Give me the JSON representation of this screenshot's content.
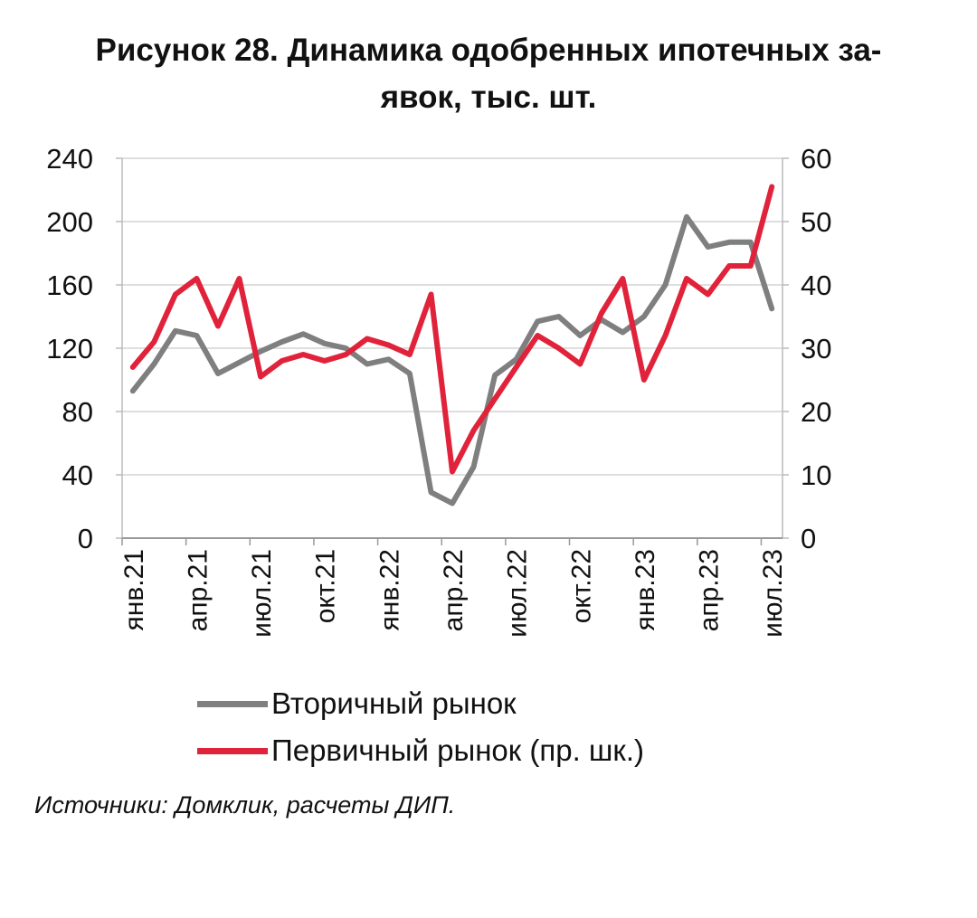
{
  "chart_data": {
    "type": "line",
    "title": "Рисунок 28. Динамика одобренных ипотечных за-вявок, тыс. шт.",
    "title_lines": [
      "Рисунок 28. Динамика одобренных ипотечных за-",
      "явок, тыс. шт."
    ],
    "categories": [
      "янв.21",
      "фев.21",
      "мар.21",
      "апр.21",
      "май.21",
      "июн.21",
      "июл.21",
      "авг.21",
      "сен.21",
      "окт.21",
      "ноя.21",
      "дек.21",
      "янв.22",
      "фев.22",
      "мар.22",
      "апр.22",
      "май.22",
      "июн.22",
      "июл.22",
      "авг.22",
      "сен.22",
      "окт.22",
      "ноя.22",
      "дек.22",
      "янв.23",
      "фев.23",
      "мар.23",
      "апр.23",
      "май.23",
      "июн.23",
      "июл.23"
    ],
    "tick_labels": [
      "янв.21",
      "апр.21",
      "июл.21",
      "окт.21",
      "янв.22",
      "апр.22",
      "июл.22",
      "окт.22",
      "янв.23",
      "апр.23",
      "июл.23"
    ],
    "y_left": {
      "ticks": [
        "0",
        "40",
        "80",
        "120",
        "160",
        "200",
        "240"
      ],
      "ylim": [
        0,
        240
      ]
    },
    "y_right": {
      "ticks": [
        "0",
        "10",
        "20",
        "30",
        "40",
        "50",
        "60"
      ],
      "ylim": [
        0,
        60
      ]
    },
    "grid": true,
    "legend_position": "bottom-left",
    "series": [
      {
        "name": "Вторичный рынок",
        "axis": "left",
        "color": "#7f7f7f",
        "values": [
          93,
          110,
          131,
          128,
          104,
          111,
          118,
          124,
          129,
          123,
          120,
          110,
          113,
          104,
          29,
          22,
          45,
          103,
          113,
          137,
          140,
          128,
          138,
          130,
          140,
          160,
          203,
          184,
          187,
          187,
          145
        ]
      },
      {
        "name": "Первичный рынок (пр. шк.)",
        "axis": "right",
        "color": "#e0233a",
        "values": [
          27,
          31,
          38.5,
          41,
          33.5,
          41,
          25.5,
          28,
          29,
          28,
          29,
          31.5,
          30.5,
          29,
          38.5,
          10.5,
          17,
          22,
          27,
          32,
          30,
          27.5,
          35.5,
          41,
          25,
          32,
          41,
          38.5,
          43,
          43,
          55.5
        ]
      }
    ]
  },
  "source": "Источники: Домклик, расчеты ДИП."
}
